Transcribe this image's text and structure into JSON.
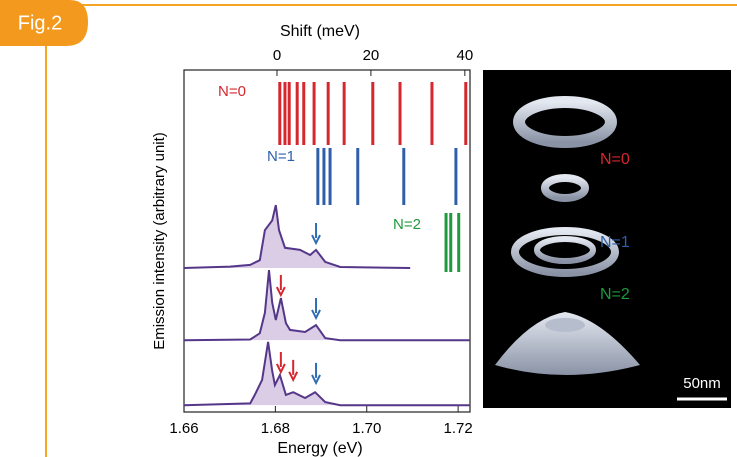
{
  "figure_label": "Fig.2",
  "chart_data": {
    "type": "line",
    "xlabel": "Energy (eV)",
    "x2label": "Shift (meV)",
    "ylabel": "Emission intensity (arbitrary unit)",
    "xlim": [
      1.66,
      1.7226
    ],
    "xticks": [
      1.66,
      1.68,
      {
        "value": 1.7,
        "label": "1.70"
      },
      1.72
    ],
    "x2lim": [
      -19.8,
      41.1
    ],
    "x2ticks": [
      0,
      20,
      40
    ],
    "ylim": [
      0,
      10
    ],
    "line_color": "#55378a",
    "fill_color": "#dccde6",
    "series": [
      {
        "x": [
          1.66,
          1.6701,
          1.6745,
          1.6766,
          1.6777,
          1.6793,
          1.6801,
          1.6808,
          1.6821,
          1.6854,
          1.6876,
          1.6889,
          1.6909,
          1.6942,
          1.7095
        ],
        "values": [
          4.21,
          4.25,
          4.3,
          4.44,
          5.32,
          5.6,
          6.05,
          5.32,
          4.8,
          4.74,
          4.59,
          4.74,
          4.39,
          4.24,
          4.21
        ]
      },
      {
        "x": [
          1.66,
          1.6745,
          1.6766,
          1.6777,
          1.6786,
          1.6793,
          1.6801,
          1.6812,
          1.6823,
          1.6832,
          1.6865,
          1.6889,
          1.6909,
          1.6942,
          1.7226
        ],
        "values": [
          2.1,
          2.12,
          2.3,
          2.9,
          4.15,
          3.2,
          2.69,
          3.33,
          2.6,
          2.4,
          2.34,
          2.54,
          2.16,
          2.1,
          2.1
        ]
      },
      {
        "x": [
          1.66,
          1.6745,
          1.6755,
          1.6771,
          1.6784,
          1.6793,
          1.6799,
          1.681,
          1.6823,
          1.6839,
          1.6865,
          1.6887,
          1.6909,
          1.6942,
          1.7226
        ],
        "values": [
          0.2,
          0.25,
          0.5,
          0.94,
          2.05,
          1.2,
          0.79,
          1.08,
          0.5,
          0.58,
          0.41,
          0.58,
          0.29,
          0.2,
          0.2
        ]
      }
    ],
    "transitions": [
      {
        "name": "N=0",
        "color": "#d6262e",
        "values": [
          0.6,
          1.7,
          2.6,
          4.3,
          5.7,
          7.9,
          10.9,
          14.3,
          20.4,
          26.2,
          33.0,
          40.2
        ]
      },
      {
        "name": "N=1",
        "color": "#2f5fa8",
        "values": [
          8.7,
          10.0,
          11.3,
          17.2,
          27.0,
          38.1
        ]
      },
      {
        "name": "N=2",
        "color": "#1f9a3c",
        "values": [
          36.0,
          37.0,
          38.7
        ]
      }
    ],
    "arrows": [
      {
        "x": 1.6889,
        "y": 4.94,
        "color": "#2f6db3"
      },
      {
        "x": 1.6812,
        "y": 3.42,
        "color": "#d6262e"
      },
      {
        "x": 1.6889,
        "y": 2.75,
        "color": "#2f6db3"
      },
      {
        "x": 1.6812,
        "y": 1.17,
        "color": "#d6262e"
      },
      {
        "x": 1.6839,
        "y": 0.94,
        "color": "#d6262e"
      },
      {
        "x": 1.6889,
        "y": 0.85,
        "color": "#2f6db3"
      }
    ]
  },
  "image_panel": {
    "labels": [
      {
        "text": "N=0",
        "color": "#d6262e"
      },
      {
        "text": "N=1",
        "color": "#2f5fa8"
      },
      {
        "text": "N=2",
        "color": "#1f9a3c"
      }
    ],
    "scale_bar": "50nm"
  }
}
